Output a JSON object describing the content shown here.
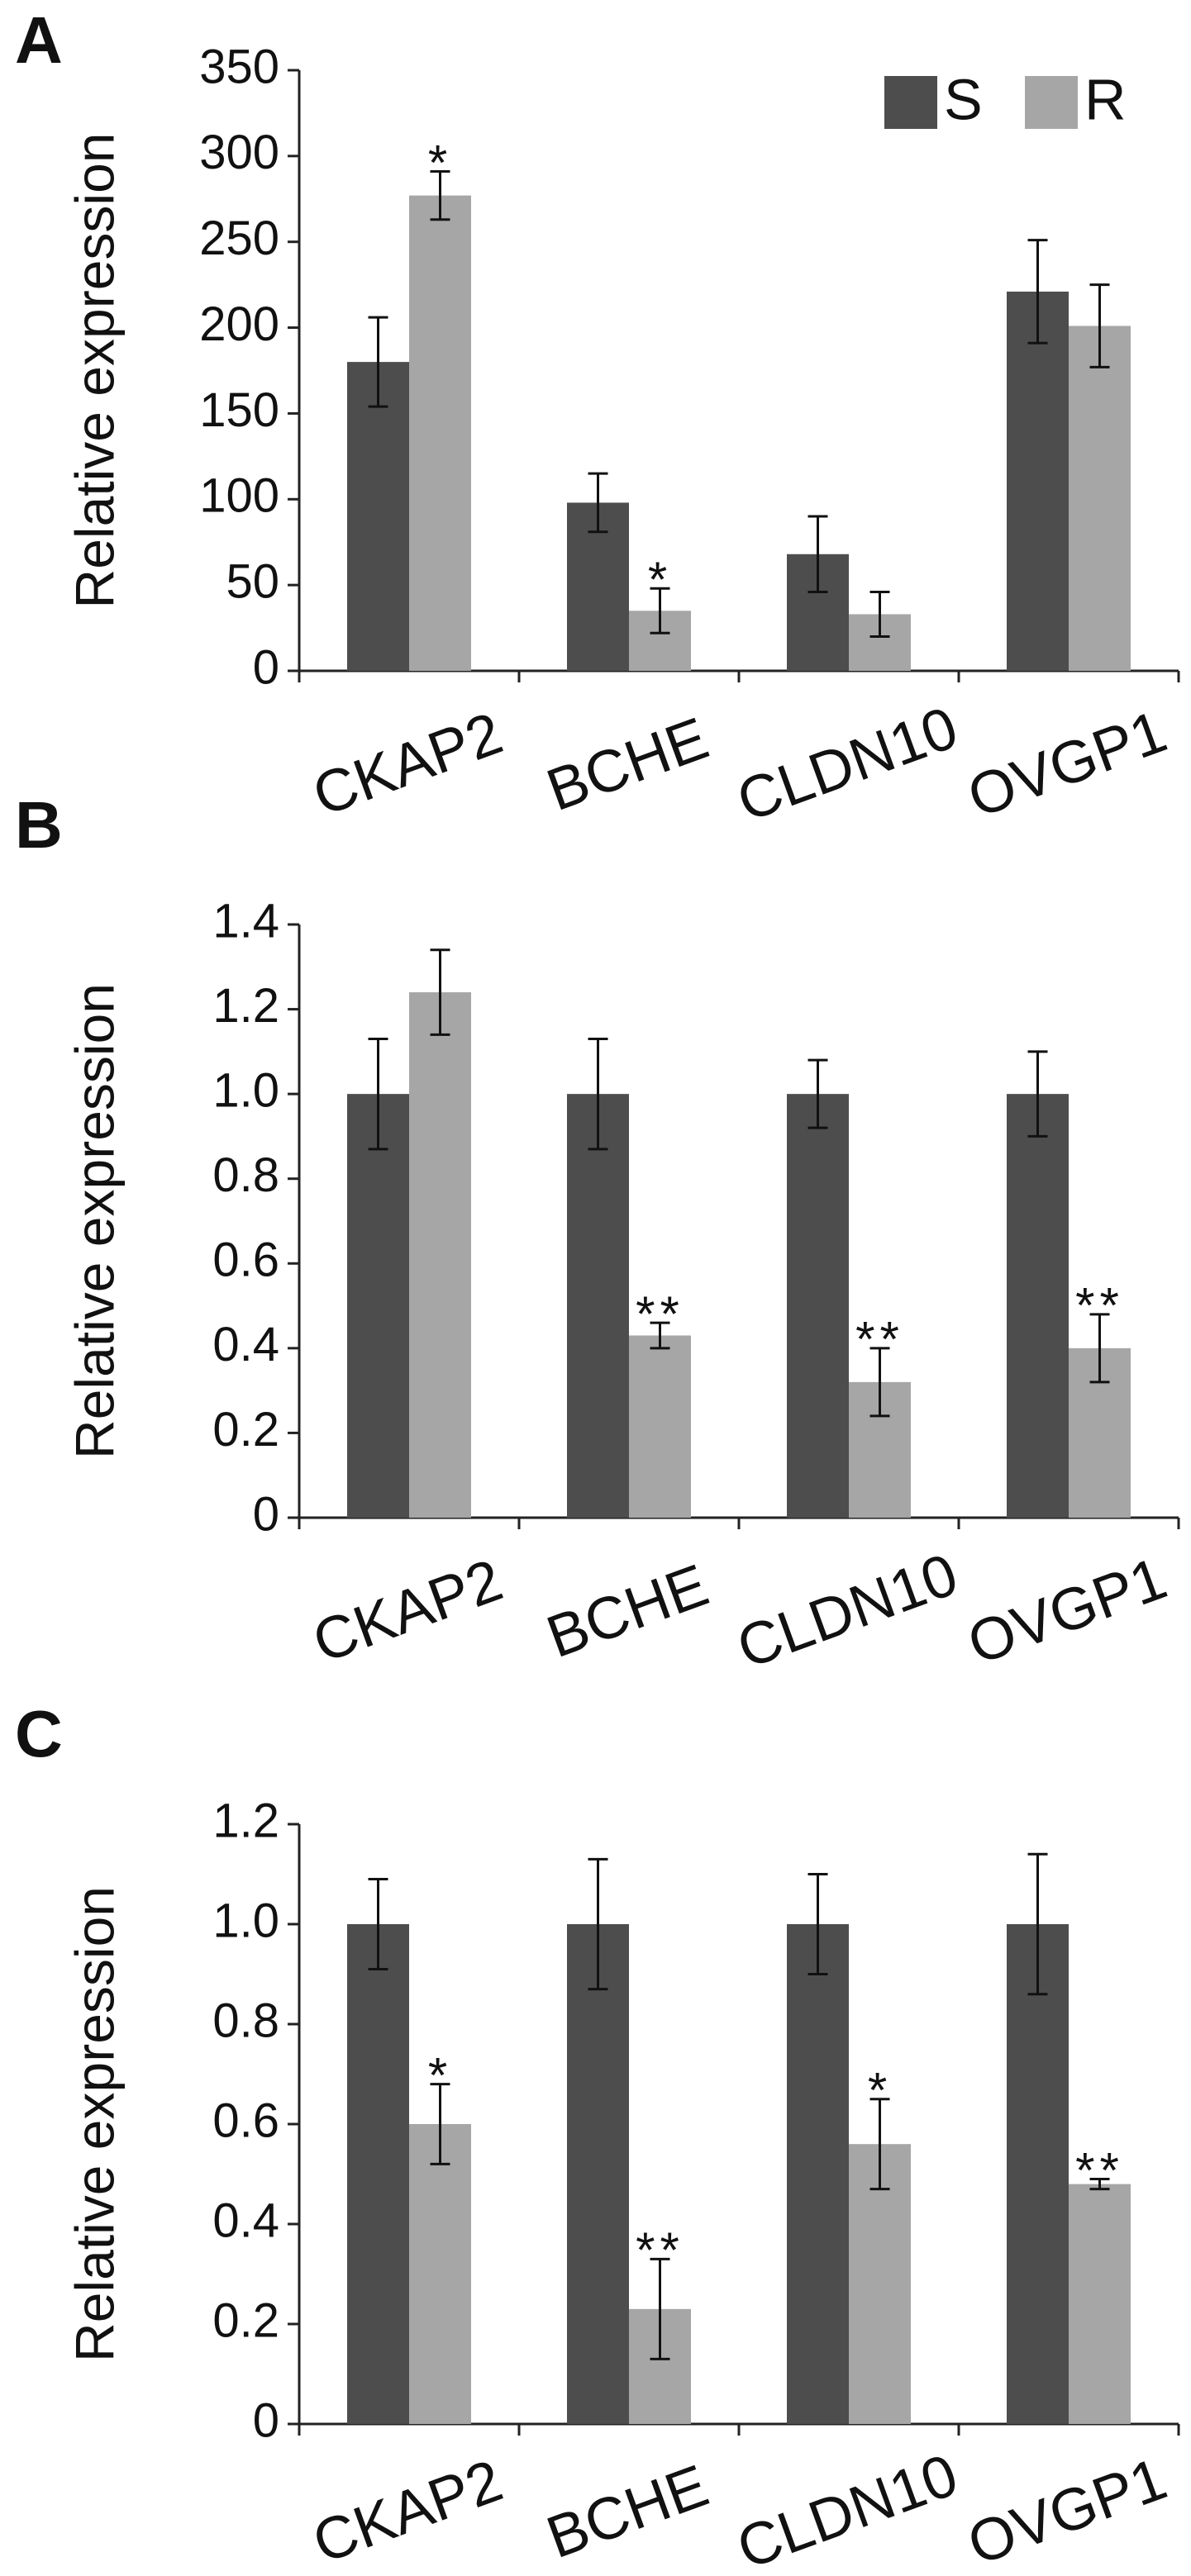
{
  "chart_data": [
    {
      "type": "bar",
      "label": "A",
      "y_label": "Relative expression",
      "categories": [
        "CKAP2",
        "BCHE",
        "CLDN10",
        "OVGP1"
      ],
      "series": [
        {
          "name": "S",
          "color": "#4d4d4d",
          "values": [
            180,
            98,
            68,
            221
          ],
          "errors": [
            26,
            17,
            22,
            30
          ],
          "annotations": [
            null,
            null,
            null,
            null
          ]
        },
        {
          "name": "R",
          "color": "#a6a6a6",
          "values": [
            277,
            35,
            33,
            201
          ],
          "errors": [
            14,
            13,
            13,
            24
          ],
          "annotations": [
            "*",
            "*",
            null,
            null
          ]
        }
      ],
      "ylim": [
        0,
        350
      ],
      "yticks": [
        0,
        50,
        100,
        150,
        200,
        250,
        300,
        350
      ],
      "legend": "upper right"
    },
    {
      "type": "bar",
      "label": "B",
      "y_label": "Relative expression",
      "categories": [
        "CKAP2",
        "BCHE",
        "CLDN10",
        "OVGP1"
      ],
      "series": [
        {
          "name": "S",
          "color": "#4d4d4d",
          "values": [
            1.0,
            1.0,
            1.0,
            1.0
          ],
          "errors": [
            0.13,
            0.13,
            0.08,
            0.1
          ],
          "annotations": [
            null,
            null,
            null,
            null
          ]
        },
        {
          "name": "R",
          "color": "#a6a6a6",
          "values": [
            1.24,
            0.43,
            0.32,
            0.4
          ],
          "errors": [
            0.1,
            0.03,
            0.08,
            0.08
          ],
          "annotations": [
            null,
            "**",
            "**",
            "**"
          ]
        }
      ],
      "ylim": [
        0,
        1.4
      ],
      "yticks": [
        0,
        0.2,
        0.4,
        0.6,
        0.8,
        {
          "value": 1,
          "label": "1.0"
        },
        1.2,
        1.4
      ],
      "legend": false
    },
    {
      "type": "bar",
      "label": "C",
      "y_label": "Relative expression",
      "categories": [
        "CKAP2",
        "BCHE",
        "CLDN10",
        "OVGP1"
      ],
      "series": [
        {
          "name": "S",
          "color": "#4d4d4d",
          "values": [
            1.0,
            1.0,
            1.0,
            1.0
          ],
          "errors": [
            0.09,
            0.13,
            0.1,
            0.14
          ],
          "annotations": [
            null,
            null,
            null,
            null
          ]
        },
        {
          "name": "R",
          "color": "#a6a6a6",
          "values": [
            0.6,
            0.23,
            0.56,
            0.48
          ],
          "errors": [
            0.08,
            0.1,
            0.09,
            0.01
          ],
          "annotations": [
            "*",
            "**",
            "*",
            "**"
          ]
        }
      ],
      "ylim": [
        0,
        1.2
      ],
      "yticks": [
        0,
        0.2,
        0.4,
        0.6,
        0.8,
        {
          "value": 1,
          "label": "1.0"
        },
        1.2
      ],
      "legend": false
    }
  ]
}
